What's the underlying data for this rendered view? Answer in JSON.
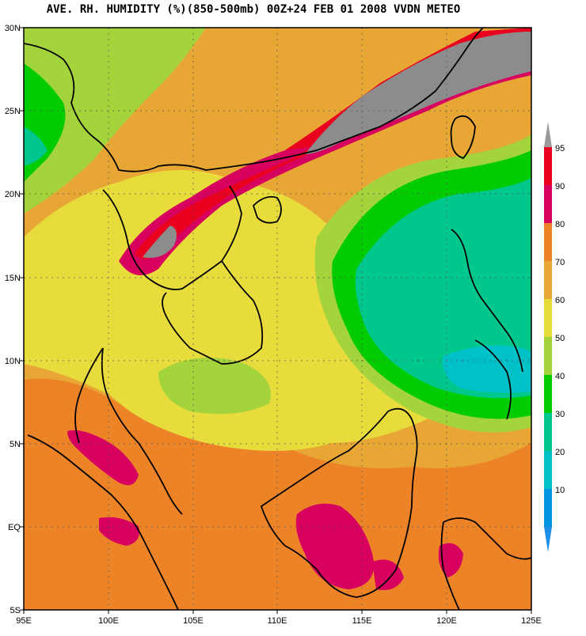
{
  "title": "AVE. RH. HUMIDITY (%)(850-500mb) 00Z+24 FEB 01 2008 VVDN METEO",
  "x_ticks": [
    "95E",
    "100E",
    "105E",
    "110E",
    "115E",
    "120E",
    "125E"
  ],
  "y_ticks": [
    "30N",
    "25N",
    "20N",
    "15N",
    "10N",
    "5N",
    "EQ",
    "5S"
  ],
  "legend": {
    "labels": [
      "95",
      "90",
      "80",
      "70",
      "60",
      "50",
      "40",
      "30",
      "20",
      "10"
    ],
    "colors": [
      "#e8001e",
      "#d8005e",
      "#ed8327",
      "#e8a734",
      "#e8dc3c",
      "#a4d43c",
      "#00cc00",
      "#00c88c",
      "#00c0c8",
      "#0095e0"
    ],
    "top_arrow_color": "#9a9a9a",
    "bottom_arrow_color": "#1e8fe8"
  },
  "colors": {
    "background": "#e8a734",
    "dry_core": "#00c88c",
    "saturated": "#e8001e",
    "missing": "#8c8c8c",
    "coast": "#000000",
    "grid": "#555555"
  }
}
